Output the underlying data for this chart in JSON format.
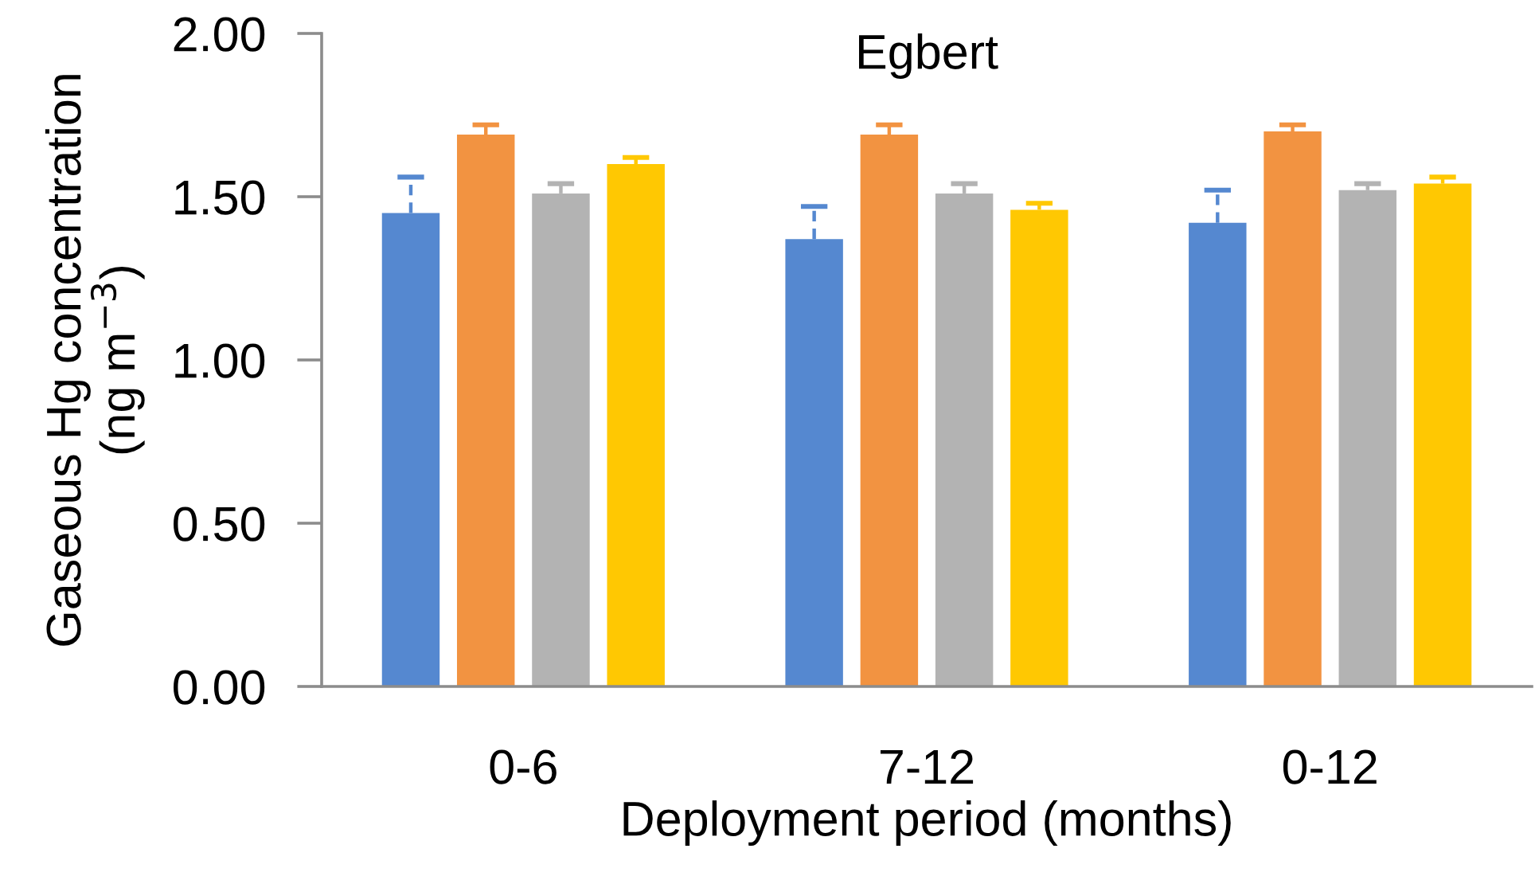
{
  "chart_data": {
    "type": "bar",
    "title": "Egbert",
    "xlabel": "Deployment period (months)",
    "ylabel": "Gaseous Hg concentration\n(ng m$^{−3}$)",
    "categories": [
      "0-6",
      "7-12",
      "0-12"
    ],
    "series": [
      {
        "color": "#5588d0",
        "values": [
          1.45,
          1.37,
          1.42
        ],
        "errors": [
          [
            1.45,
            1.56
          ],
          [
            1.37,
            1.47
          ],
          [
            1.42,
            1.52
          ]
        ],
        "line_style": "dashed"
      },
      {
        "color": "#f29341",
        "values": [
          1.69,
          1.69,
          1.7
        ],
        "errors": [
          [
            1.69,
            1.72
          ],
          [
            1.69,
            1.72
          ],
          [
            1.7,
            1.72
          ]
        ]
      },
      {
        "color": "#b3b3b3",
        "values": [
          1.51,
          1.51,
          1.52
        ],
        "errors": [
          [
            1.51,
            1.54
          ],
          [
            1.51,
            1.54
          ],
          [
            1.52,
            1.54
          ]
        ]
      },
      {
        "color": "#ffc802",
        "values": [
          1.6,
          1.46,
          1.54
        ],
        "errors": [
          [
            1.6,
            1.62
          ],
          [
            1.46,
            1.48
          ],
          [
            1.54,
            1.56
          ]
        ]
      }
    ],
    "ylim": [
      0,
      2
    ],
    "yticks": [
      {
        "value": 0,
        "label": "0.00"
      },
      {
        "value": 0.5,
        "label": "0.50"
      },
      {
        "value": 1,
        "label": "1.00"
      },
      {
        "value": 1.5,
        "label": "1.50"
      },
      {
        "value": 2,
        "label": "2.00"
      }
    ]
  }
}
